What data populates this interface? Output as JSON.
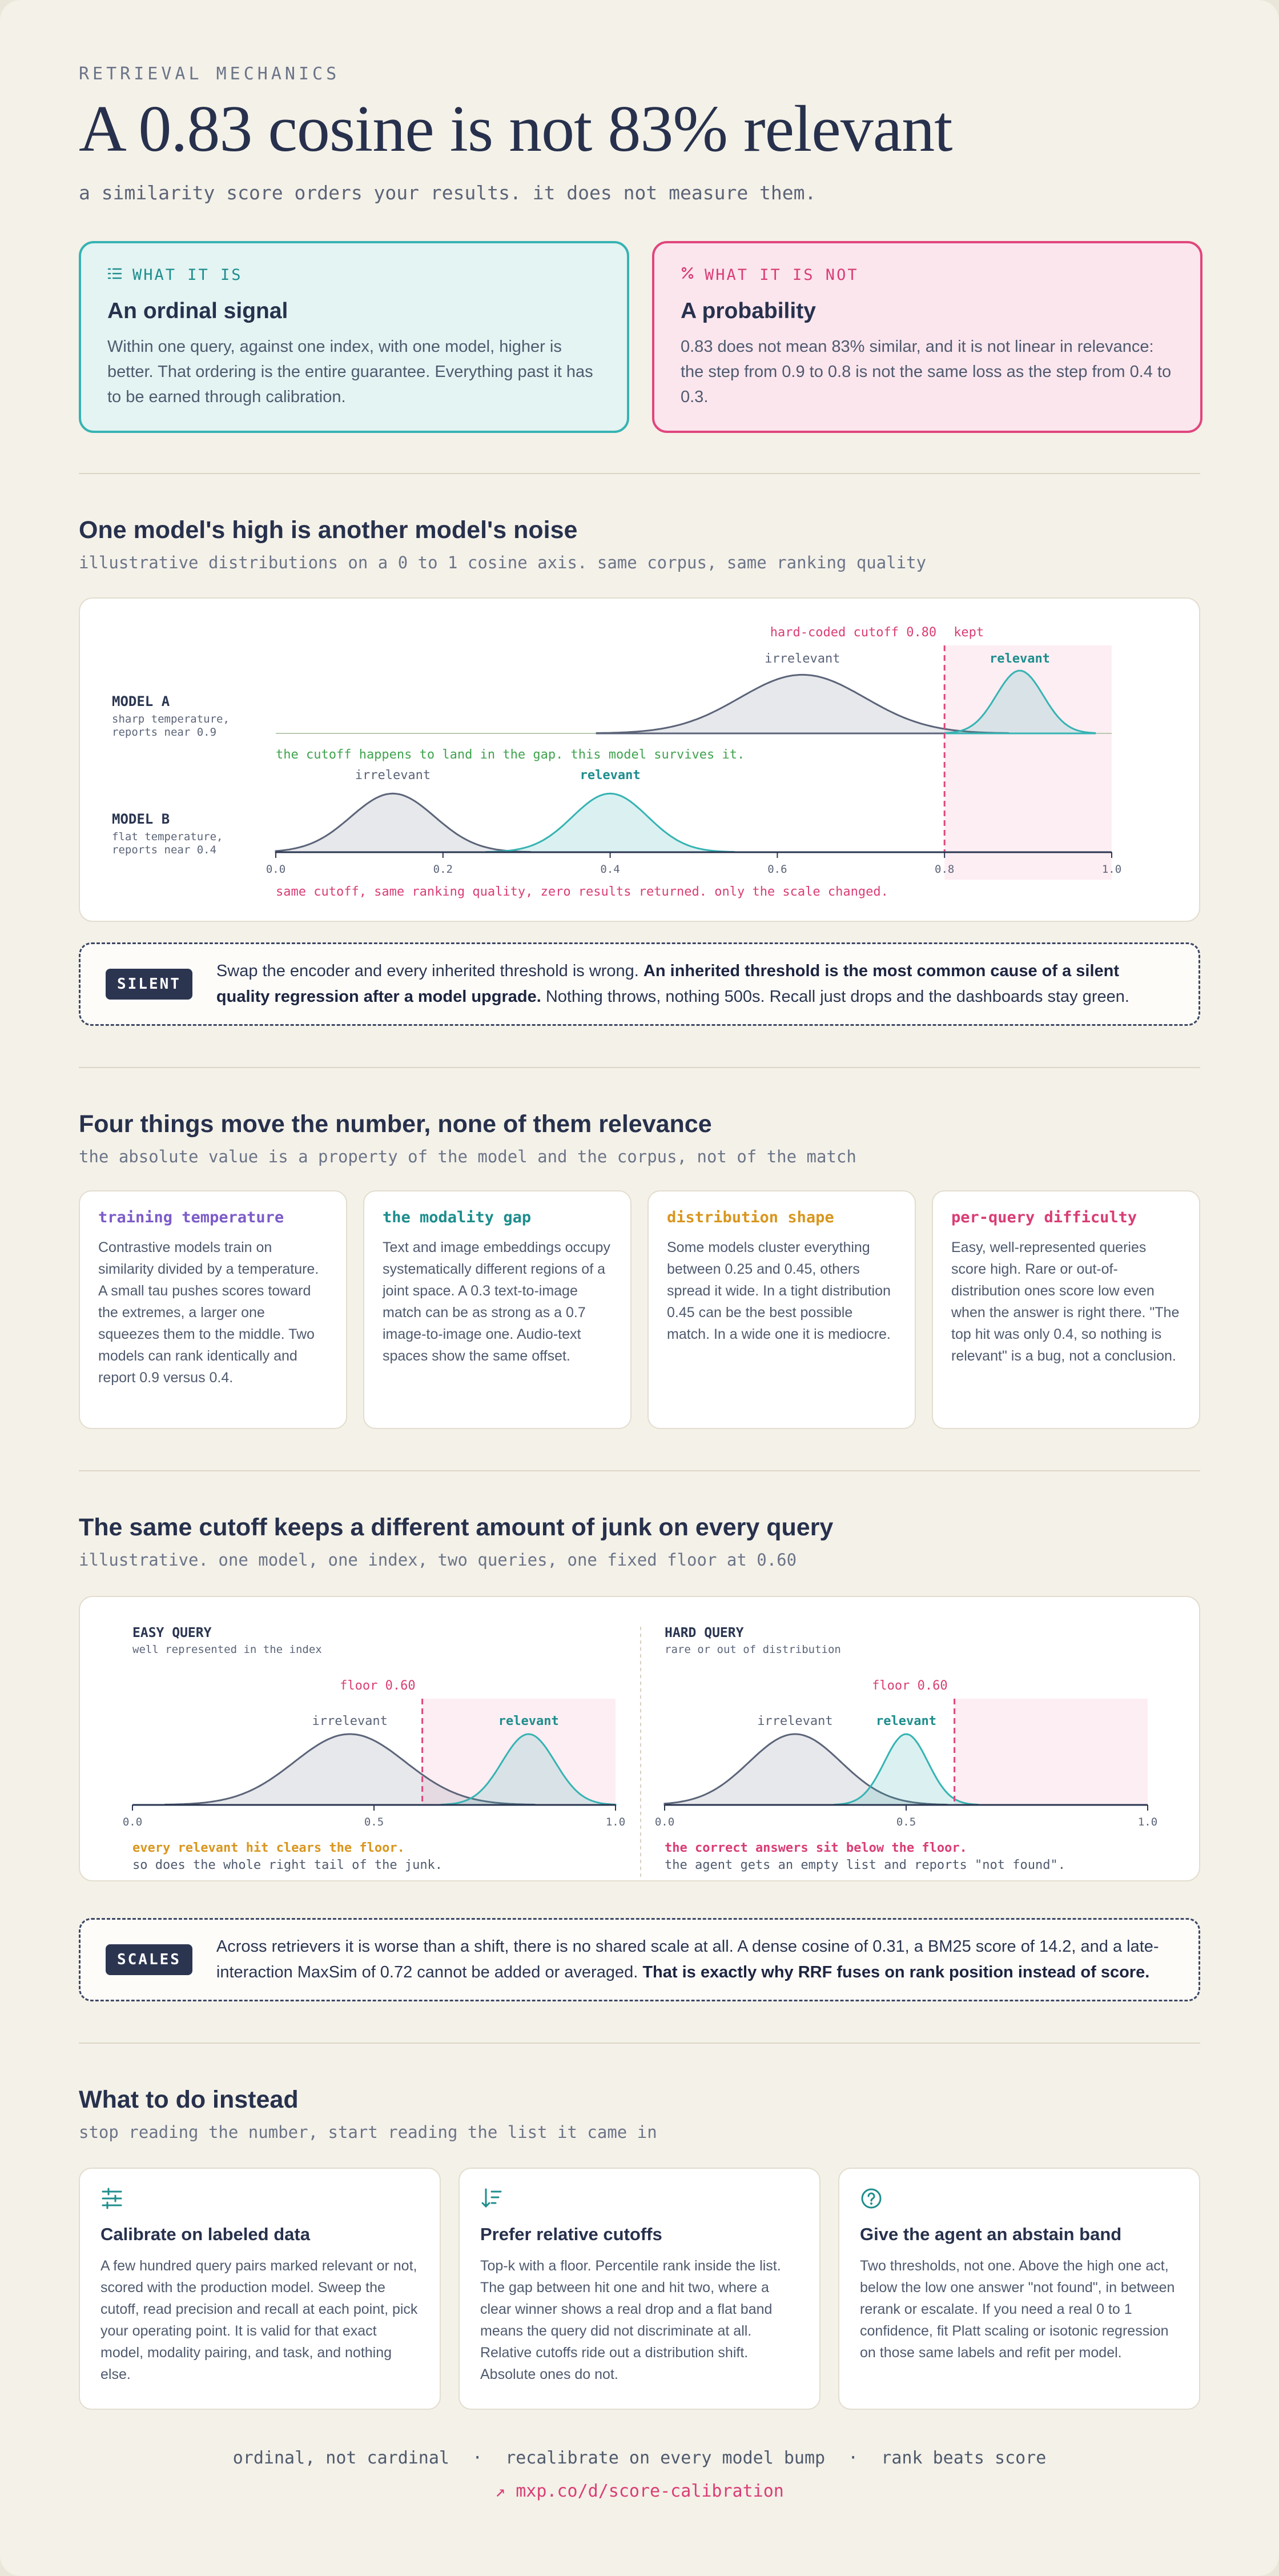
{
  "header": {
    "eyebrow": "RETRIEVAL MECHANICS",
    "title": "A 0.83 cosine is not 83% relevant",
    "subtitle": "a similarity score orders your results. it does not measure them."
  },
  "summary_cards": [
    {
      "tag": "WHAT IT IS",
      "icon": "list-ordered-icon",
      "heading": "An ordinal signal",
      "body": "Within one query, against one index, with one model, higher is better. That ordering is the entire guarantee. Everything past it has to be earned through calibration."
    },
    {
      "tag": "WHAT IT IS NOT",
      "icon": "percent-icon",
      "heading": "A probability",
      "body": "0.83 does not mean 83% similar, and it is not linear in relevance: the step from 0.9 to 0.8 is not the same loss as the step from 0.4 to 0.3."
    }
  ],
  "section_models": {
    "title": "One model's high is another model's noise",
    "subtitle": "illustrative distributions on a 0 to 1 cosine axis. same corpus, same ranking quality",
    "cutoff_label": "hard-coded cutoff 0.80",
    "kept_label": "kept",
    "model_a": {
      "name": "MODEL A",
      "desc1": "sharp temperature,",
      "desc2": "reports near 0.9",
      "irrelevant": "irrelevant",
      "relevant": "relevant",
      "note": "the cutoff happens to land in the gap. this model survives it."
    },
    "model_b": {
      "name": "MODEL B",
      "desc1": "flat temperature,",
      "desc2": "reports near 0.4",
      "irrelevant": "irrelevant",
      "relevant": "relevant",
      "note": "same cutoff, same ranking quality, zero results returned. only the scale changed."
    },
    "axis_ticks": [
      "0.0",
      "0.2",
      "0.4",
      "0.6",
      "0.8",
      "1.0"
    ]
  },
  "callout_silent": {
    "badge": "SILENT",
    "pre": "Swap the encoder and every inherited threshold is wrong. ",
    "bold": "An inherited threshold is the most common cause of a silent quality regression after a model upgrade.",
    "post": " Nothing throws, nothing 500s. Recall just drops and the dashboards stay green."
  },
  "section_factors": {
    "title": "Four things move the number, none of them relevance",
    "subtitle": "the absolute value is a property of the model and the corpus, not of the match",
    "items": [
      {
        "title": "training temperature",
        "color": "#7c5cc9",
        "body": "Contrastive models train on similarity divided by a temperature. A small tau pushes scores toward the extremes, a larger one squeezes them to the middle. Two models can rank identically and report 0.9 versus 0.4."
      },
      {
        "title": "the modality gap",
        "color": "#1e8d8d",
        "body": "Text and image embeddings occupy systematically different regions of a joint space. A 0.3 text-to-image match can be as strong as a 0.7 image-to-image one. Audio-text spaces show the same offset."
      },
      {
        "title": "distribution shape",
        "color": "#d9961e",
        "body": "Some models cluster everything between 0.25 and 0.45, others spread it wide. In a tight distribution 0.45 can be the best possible match. In a wide one it is mediocre."
      },
      {
        "title": "per-query difficulty",
        "color": "#d93d75",
        "body": "Easy, well-represented queries score high. Rare or out-of-distribution ones score low even when the answer is right there. \"The top hit was only 0.4, so nothing is relevant\" is a bug, not a conclusion."
      }
    ]
  },
  "section_queries": {
    "title": "The same cutoff keeps a different amount of junk on every query",
    "subtitle": "illustrative. one model, one index, two queries, one fixed floor at 0.60",
    "easy": {
      "name": "EASY QUERY",
      "desc": "well represented in the index",
      "floor": "floor 0.60",
      "irrelevant": "irrelevant",
      "relevant": "relevant",
      "note1": "every relevant hit clears the floor.",
      "note2": "so does the whole right tail of the junk."
    },
    "hard": {
      "name": "HARD QUERY",
      "desc": "rare or out of distribution",
      "floor": "floor 0.60",
      "irrelevant": "irrelevant",
      "relevant": "relevant",
      "note1": "the correct answers sit below the floor.",
      "note2": "the agent gets an empty list and reports \"not found\"."
    },
    "axis_ticks": [
      "0.0",
      "0.5",
      "1.0"
    ]
  },
  "callout_scales": {
    "badge": "SCALES",
    "pre": "Across retrievers it is worse than a shift, there is no shared scale at all. A dense cosine of 0.31, a BM25 score of 14.2, and a late-interaction MaxSim of 0.72 cannot be added or averaged. ",
    "bold": "That is exactly why RRF fuses on rank position instead of score."
  },
  "section_todo": {
    "title": "What to do instead",
    "subtitle": "stop reading the number, start reading the list it came in",
    "items": [
      {
        "icon": "sliders-icon",
        "heading": "Calibrate on labeled data",
        "body": "A few hundred query pairs marked relevant or not, scored with the production model. Sweep the cutoff, read precision and recall at each point, pick your operating point. It is valid for that exact model, modality pairing, and task, and nothing else."
      },
      {
        "icon": "sort-descending-icon",
        "heading": "Prefer relative cutoffs",
        "body": "Top-k with a floor. Percentile rank inside the list. The gap between hit one and hit two, where a clear winner shows a real drop and a flat band means the query did not discriminate at all. Relative cutoffs ride out a distribution shift. Absolute ones do not."
      },
      {
        "icon": "question-circle-icon",
        "heading": "Give the agent an abstain band",
        "body": "Two thresholds, not one. Above the high one act, below the low one answer \"not found\", in between rerank or escalate. If you need a real 0 to 1 confidence, fit Platt scaling or isotonic regression on those same labels and refit per model."
      }
    ]
  },
  "footer": {
    "items": [
      "ordinal, not cardinal",
      "recalibrate on every model bump",
      "rank beats score"
    ],
    "separator": "·",
    "link": "↗ mxp.co/d/score-calibration"
  },
  "chart_data": [
    {
      "type": "area",
      "title": "",
      "xlabel": "",
      "xlim": [
        0,
        1
      ],
      "x_ticks": [
        0.0,
        0.2,
        0.4,
        0.6,
        0.8,
        1.0
      ],
      "cutoff": 0.8,
      "series": [
        {
          "name": "MODEL A irrelevant",
          "kind": "gaussian",
          "mean": 0.63,
          "sd": 0.075,
          "relative_height": 0.7
        },
        {
          "name": "MODEL A relevant",
          "kind": "gaussian",
          "mean": 0.89,
          "sd": 0.028,
          "relative_height": 0.75
        },
        {
          "name": "MODEL B irrelevant",
          "kind": "gaussian",
          "mean": 0.14,
          "sd": 0.05,
          "relative_height": 0.7
        },
        {
          "name": "MODEL B relevant",
          "kind": "gaussian",
          "mean": 0.4,
          "sd": 0.045,
          "relative_height": 0.7
        }
      ]
    },
    {
      "type": "area",
      "title": "",
      "xlim": [
        0,
        1
      ],
      "x_ticks": [
        0.0,
        0.5,
        1.0
      ],
      "floor": 0.6,
      "series": [
        {
          "name": "EASY QUERY irrelevant",
          "kind": "gaussian",
          "mean": 0.45,
          "sd": 0.115,
          "relative_height": 0.75
        },
        {
          "name": "EASY QUERY relevant",
          "kind": "gaussian",
          "mean": 0.82,
          "sd": 0.055,
          "relative_height": 0.75
        }
      ]
    },
    {
      "type": "area",
      "title": "",
      "xlim": [
        0,
        1
      ],
      "x_ticks": [
        0.0,
        0.5,
        1.0
      ],
      "floor": 0.6,
      "series": [
        {
          "name": "HARD QUERY irrelevant",
          "kind": "gaussian",
          "mean": 0.27,
          "sd": 0.095,
          "relative_height": 0.75
        },
        {
          "name": "HARD QUERY relevant",
          "kind": "gaussian",
          "mean": 0.5,
          "sd": 0.045,
          "relative_height": 0.75
        }
      ]
    }
  ]
}
